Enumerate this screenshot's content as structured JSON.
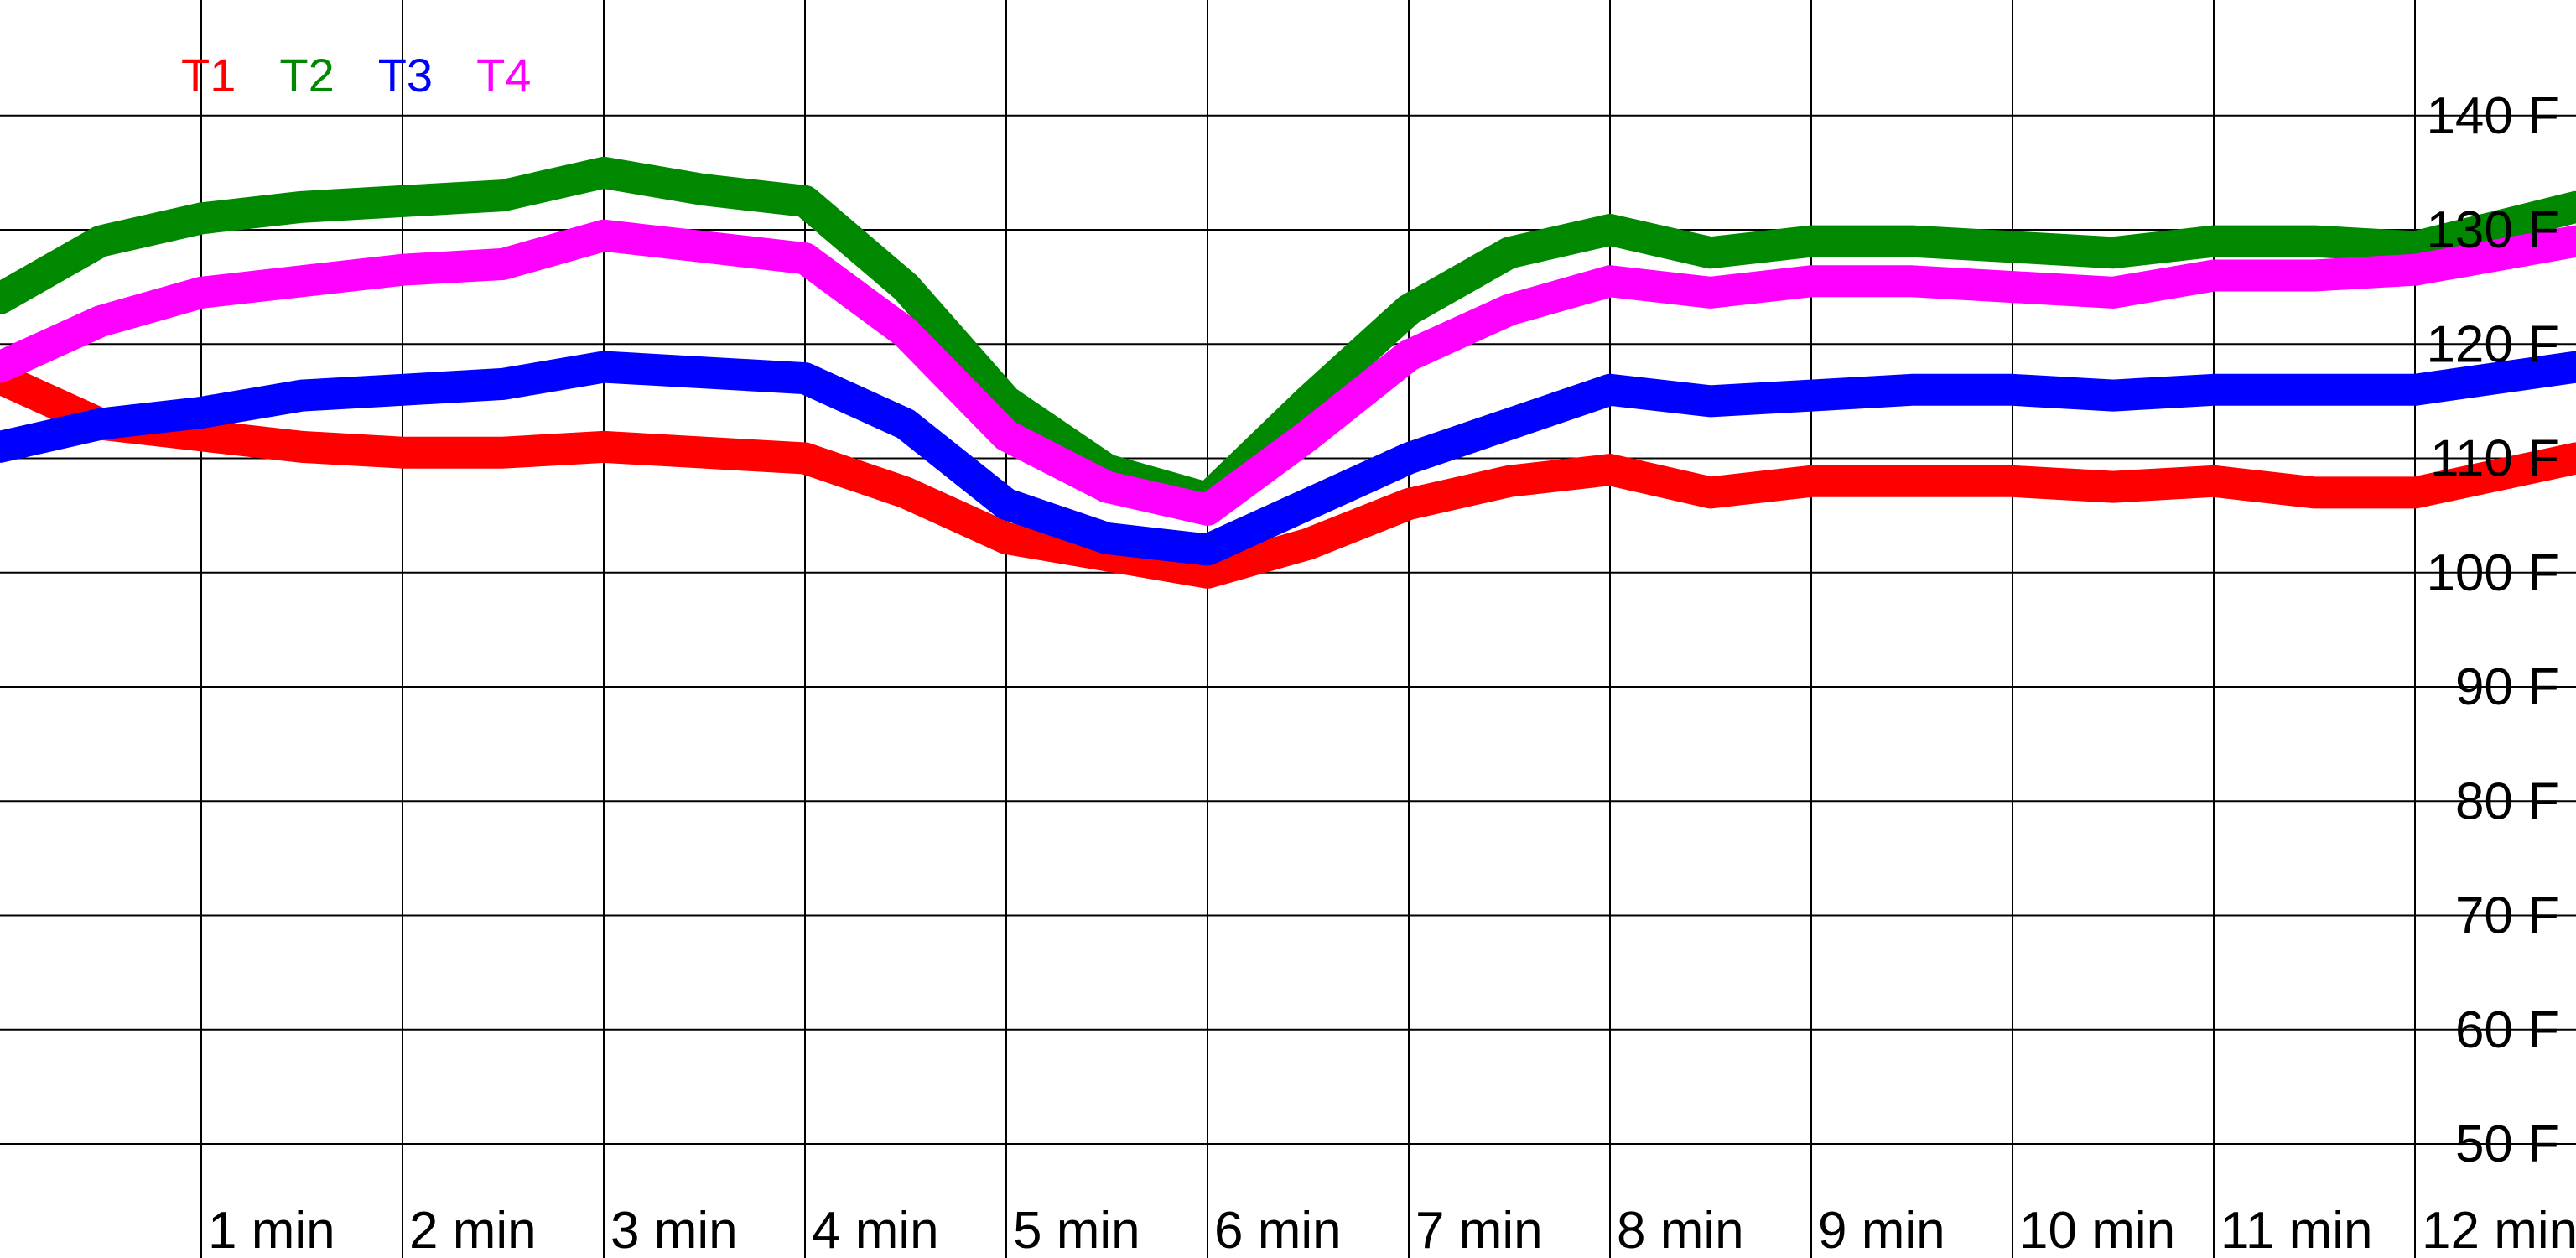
{
  "chart_data": {
    "type": "line",
    "title": "",
    "xlabel": "",
    "ylabel": "",
    "x_ticks": [
      "1 min",
      "2 min",
      "3 min",
      "4 min",
      "5 min",
      "6 min",
      "7 min",
      "8 min",
      "9 min",
      "10 min",
      "11 min",
      "12 min"
    ],
    "y_ticks": [
      "140 F",
      "130 F",
      "120 F",
      "110 F",
      "100 F",
      "90 F",
      "80 F",
      "70 F",
      "60 F",
      "50 F"
    ],
    "xlim": [
      0,
      12.8
    ],
    "ylim": [
      45,
      145
    ],
    "grid": true,
    "legend_position": "top-left",
    "x": [
      0,
      0.5,
      1,
      1.5,
      2,
      2.5,
      3,
      3.5,
      4,
      4.5,
      5,
      5.5,
      6,
      6.5,
      7,
      7.5,
      8,
      8.5,
      9,
      9.5,
      10,
      10.5,
      11,
      11.5,
      12,
      12.8
    ],
    "series": [
      {
        "name": "T1",
        "color": "#ff0000",
        "values": [
          117,
          113,
          112,
          111,
          110.5,
          110.5,
          111,
          110.5,
          110,
          107,
          103,
          101.5,
          100,
          102.5,
          106,
          108,
          109,
          107,
          108,
          108,
          108,
          107.5,
          108,
          107,
          107,
          110
        ]
      },
      {
        "name": "T2",
        "color": "#008800",
        "values": [
          124,
          129,
          131,
          132,
          132.5,
          133,
          135,
          133.5,
          132.5,
          125,
          115,
          109,
          106.5,
          115,
          123,
          128,
          130,
          128,
          129,
          129,
          128.5,
          128,
          129,
          129,
          128.5,
          132
        ]
      },
      {
        "name": "T3",
        "color": "#0000ff",
        "values": [
          111,
          113,
          114,
          115.5,
          116,
          116.5,
          118,
          117.5,
          117,
          113,
          106,
          103,
          102,
          106,
          110,
          113,
          116,
          115,
          115.5,
          116,
          116,
          115.5,
          116,
          116,
          116,
          118
        ]
      },
      {
        "name": "T4",
        "color": "#ff00ff",
        "values": [
          118,
          122,
          124.5,
          125.5,
          126.5,
          127,
          129.5,
          128.5,
          127.5,
          121,
          112,
          107.5,
          105.5,
          112,
          119,
          123,
          125.5,
          124.5,
          125.5,
          125.5,
          125,
          124.5,
          126,
          126,
          126.5,
          129
        ]
      }
    ]
  }
}
